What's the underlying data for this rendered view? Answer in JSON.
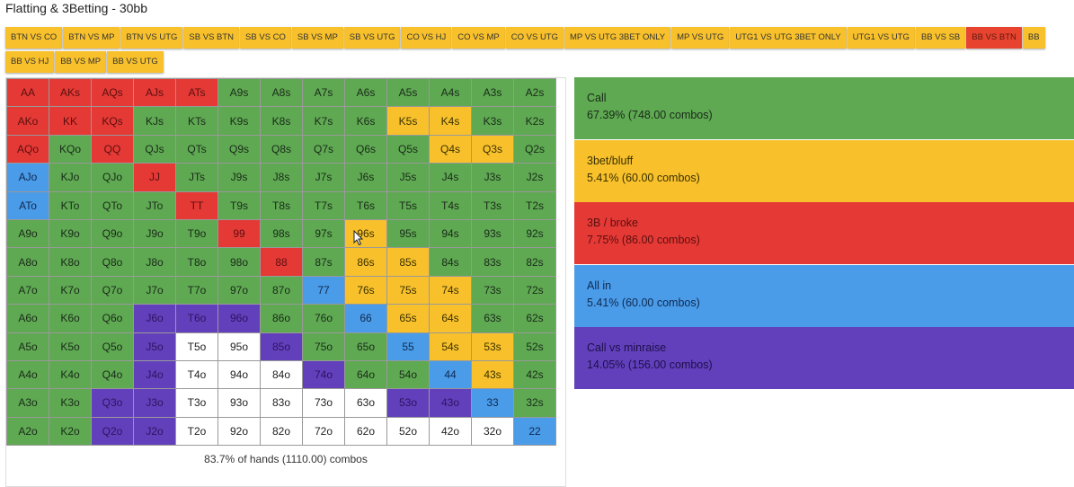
{
  "title": "Flatting & 3Betting - 30bb",
  "tabs_row1": [
    "BTN VS CO",
    "BTN VS MP",
    "BTN VS UTG",
    "SB VS BTN",
    "SB VS CO",
    "SB VS MP",
    "SB VS UTG",
    "CO VS HJ",
    "CO VS MP",
    "CO VS UTG",
    "MP VS UTG 3BET ONLY",
    "MP VS UTG",
    "UTG1 VS UTG 3BET ONLY",
    "UTG1 VS UTG",
    "BB VS SB",
    "BB VS BTN",
    "BB"
  ],
  "tabs_row2": [
    "BB VS HJ",
    "BB VS MP",
    "BB VS UTG"
  ],
  "active_tab": "BB VS BTN",
  "colors": {
    "call": "#5fa952",
    "bluff": "#f8c12c",
    "broke": "#e53935",
    "allin": "#4a9be8",
    "minraise": "#6340bb",
    "fold": "#ffffff"
  },
  "grid": [
    [
      [
        "AA",
        "broke"
      ],
      [
        "AKs",
        "broke"
      ],
      [
        "AQs",
        "broke"
      ],
      [
        "AJs",
        "broke"
      ],
      [
        "ATs",
        "broke"
      ],
      [
        "A9s",
        "call"
      ],
      [
        "A8s",
        "call"
      ],
      [
        "A7s",
        "call"
      ],
      [
        "A6s",
        "call"
      ],
      [
        "A5s",
        "call"
      ],
      [
        "A4s",
        "call"
      ],
      [
        "A3s",
        "call"
      ],
      [
        "A2s",
        "call"
      ]
    ],
    [
      [
        "AKo",
        "broke"
      ],
      [
        "KK",
        "broke"
      ],
      [
        "KQs",
        "broke"
      ],
      [
        "KJs",
        "call"
      ],
      [
        "KTs",
        "call"
      ],
      [
        "K9s",
        "call"
      ],
      [
        "K8s",
        "call"
      ],
      [
        "K7s",
        "call"
      ],
      [
        "K6s",
        "call"
      ],
      [
        "K5s",
        "bluff"
      ],
      [
        "K4s",
        "bluff"
      ],
      [
        "K3s",
        "call"
      ],
      [
        "K2s",
        "call"
      ]
    ],
    [
      [
        "AQo",
        "broke"
      ],
      [
        "KQo",
        "call"
      ],
      [
        "QQ",
        "broke"
      ],
      [
        "QJs",
        "call"
      ],
      [
        "QTs",
        "call"
      ],
      [
        "Q9s",
        "call"
      ],
      [
        "Q8s",
        "call"
      ],
      [
        "Q7s",
        "call"
      ],
      [
        "Q6s",
        "call"
      ],
      [
        "Q5s",
        "call"
      ],
      [
        "Q4s",
        "bluff"
      ],
      [
        "Q3s",
        "bluff"
      ],
      [
        "Q2s",
        "call"
      ]
    ],
    [
      [
        "AJo",
        "allin"
      ],
      [
        "KJo",
        "call"
      ],
      [
        "QJo",
        "call"
      ],
      [
        "JJ",
        "broke"
      ],
      [
        "JTs",
        "call"
      ],
      [
        "J9s",
        "call"
      ],
      [
        "J8s",
        "call"
      ],
      [
        "J7s",
        "call"
      ],
      [
        "J6s",
        "call"
      ],
      [
        "J5s",
        "call"
      ],
      [
        "J4s",
        "call"
      ],
      [
        "J3s",
        "call"
      ],
      [
        "J2s",
        "call"
      ]
    ],
    [
      [
        "ATo",
        "allin"
      ],
      [
        "KTo",
        "call"
      ],
      [
        "QTo",
        "call"
      ],
      [
        "JTo",
        "call"
      ],
      [
        "TT",
        "broke"
      ],
      [
        "T9s",
        "call"
      ],
      [
        "T8s",
        "call"
      ],
      [
        "T7s",
        "call"
      ],
      [
        "T6s",
        "call"
      ],
      [
        "T5s",
        "call"
      ],
      [
        "T4s",
        "call"
      ],
      [
        "T3s",
        "call"
      ],
      [
        "T2s",
        "call"
      ]
    ],
    [
      [
        "A9o",
        "call"
      ],
      [
        "K9o",
        "call"
      ],
      [
        "Q9o",
        "call"
      ],
      [
        "J9o",
        "call"
      ],
      [
        "T9o",
        "call"
      ],
      [
        "99",
        "broke"
      ],
      [
        "98s",
        "call"
      ],
      [
        "97s",
        "call"
      ],
      [
        "96s",
        "bluff"
      ],
      [
        "95s",
        "call"
      ],
      [
        "94s",
        "call"
      ],
      [
        "93s",
        "call"
      ],
      [
        "92s",
        "call"
      ]
    ],
    [
      [
        "A8o",
        "call"
      ],
      [
        "K8o",
        "call"
      ],
      [
        "Q8o",
        "call"
      ],
      [
        "J8o",
        "call"
      ],
      [
        "T8o",
        "call"
      ],
      [
        "98o",
        "call"
      ],
      [
        "88",
        "broke"
      ],
      [
        "87s",
        "call"
      ],
      [
        "86s",
        "bluff"
      ],
      [
        "85s",
        "bluff"
      ],
      [
        "84s",
        "call"
      ],
      [
        "83s",
        "call"
      ],
      [
        "82s",
        "call"
      ]
    ],
    [
      [
        "A7o",
        "call"
      ],
      [
        "K7o",
        "call"
      ],
      [
        "Q7o",
        "call"
      ],
      [
        "J7o",
        "call"
      ],
      [
        "T7o",
        "call"
      ],
      [
        "97o",
        "call"
      ],
      [
        "87o",
        "call"
      ],
      [
        "77",
        "allin"
      ],
      [
        "76s",
        "bluff"
      ],
      [
        "75s",
        "bluff"
      ],
      [
        "74s",
        "bluff"
      ],
      [
        "73s",
        "call"
      ],
      [
        "72s",
        "call"
      ]
    ],
    [
      [
        "A6o",
        "call"
      ],
      [
        "K6o",
        "call"
      ],
      [
        "Q6o",
        "call"
      ],
      [
        "J6o",
        "minraise"
      ],
      [
        "T6o",
        "minraise"
      ],
      [
        "96o",
        "minraise"
      ],
      [
        "86o",
        "call"
      ],
      [
        "76o",
        "call"
      ],
      [
        "66",
        "allin"
      ],
      [
        "65s",
        "bluff"
      ],
      [
        "64s",
        "bluff"
      ],
      [
        "63s",
        "call"
      ],
      [
        "62s",
        "call"
      ]
    ],
    [
      [
        "A5o",
        "call"
      ],
      [
        "K5o",
        "call"
      ],
      [
        "Q5o",
        "call"
      ],
      [
        "J5o",
        "minraise"
      ],
      [
        "T5o",
        "fold"
      ],
      [
        "95o",
        "fold"
      ],
      [
        "85o",
        "minraise"
      ],
      [
        "75o",
        "call"
      ],
      [
        "65o",
        "call"
      ],
      [
        "55",
        "allin"
      ],
      [
        "54s",
        "bluff"
      ],
      [
        "53s",
        "bluff"
      ],
      [
        "52s",
        "call"
      ]
    ],
    [
      [
        "A4o",
        "call"
      ],
      [
        "K4o",
        "call"
      ],
      [
        "Q4o",
        "call"
      ],
      [
        "J4o",
        "minraise"
      ],
      [
        "T4o",
        "fold"
      ],
      [
        "94o",
        "fold"
      ],
      [
        "84o",
        "fold"
      ],
      [
        "74o",
        "minraise"
      ],
      [
        "64o",
        "call"
      ],
      [
        "54o",
        "call"
      ],
      [
        "44",
        "allin"
      ],
      [
        "43s",
        "bluff"
      ],
      [
        "42s",
        "call"
      ]
    ],
    [
      [
        "A3o",
        "call"
      ],
      [
        "K3o",
        "call"
      ],
      [
        "Q3o",
        "minraise"
      ],
      [
        "J3o",
        "minraise"
      ],
      [
        "T3o",
        "fold"
      ],
      [
        "93o",
        "fold"
      ],
      [
        "83o",
        "fold"
      ],
      [
        "73o",
        "fold"
      ],
      [
        "63o",
        "fold"
      ],
      [
        "53o",
        "minraise"
      ],
      [
        "43o",
        "minraise"
      ],
      [
        "33",
        "allin"
      ],
      [
        "32s",
        "call"
      ]
    ],
    [
      [
        "A2o",
        "call"
      ],
      [
        "K2o",
        "call"
      ],
      [
        "Q2o",
        "minraise"
      ],
      [
        "J2o",
        "minraise"
      ],
      [
        "T2o",
        "fold"
      ],
      [
        "92o",
        "fold"
      ],
      [
        "82o",
        "fold"
      ],
      [
        "72o",
        "fold"
      ],
      [
        "62o",
        "fold"
      ],
      [
        "52o",
        "fold"
      ],
      [
        "42o",
        "fold"
      ],
      [
        "32o",
        "fold"
      ],
      [
        "22",
        "allin"
      ]
    ]
  ],
  "summary": "83.7% of hands (1110.00) combos",
  "legend": [
    {
      "name": "Call",
      "pct": "67.39% (748.00 combos)",
      "key": "call"
    },
    {
      "name": "3bet/bluff",
      "pct": "5.41% (60.00 combos)",
      "key": "bluff"
    },
    {
      "name": "3B / broke",
      "pct": "7.75% (86.00 combos)",
      "key": "broke"
    },
    {
      "name": "All in",
      "pct": "5.41% (60.00 combos)",
      "key": "allin"
    },
    {
      "name": "Call vs minraise",
      "pct": "14.05% (156.00 combos)",
      "key": "minraise"
    }
  ]
}
